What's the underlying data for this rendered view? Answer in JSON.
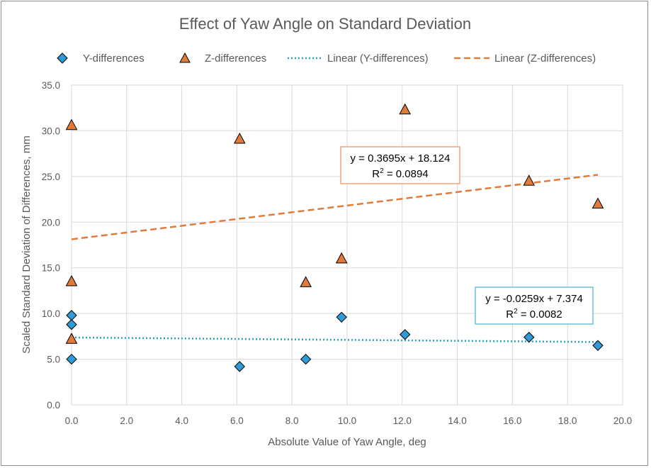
{
  "chart_data": {
    "type": "scatter",
    "title": "Effect of Yaw Angle on Standard Deviation",
    "xlabel": "Absolute Value of Yaw Angle, deg",
    "ylabel": "Scaled Standard Deviation of Differences, mm",
    "xlim": [
      0,
      20
    ],
    "ylim": [
      0,
      35
    ],
    "x_ticks": [
      "0.0",
      "2.0",
      "4.0",
      "6.0",
      "8.0",
      "10.0",
      "12.0",
      "14.0",
      "16.0",
      "18.0",
      "20.0"
    ],
    "y_ticks": [
      "0.0",
      "5.0",
      "10.0",
      "15.0",
      "20.0",
      "25.0",
      "30.0",
      "35.0"
    ],
    "grid": true,
    "legend_position": "top",
    "series": [
      {
        "name": "Y-differences",
        "marker": "diamond",
        "color": "#2E9BD6",
        "points": [
          {
            "x": 0.0,
            "y": 5.0
          },
          {
            "x": 0.0,
            "y": 8.8
          },
          {
            "x": 0.0,
            "y": 9.8
          },
          {
            "x": 6.1,
            "y": 4.2
          },
          {
            "x": 8.5,
            "y": 5.0
          },
          {
            "x": 9.8,
            "y": 9.6
          },
          {
            "x": 12.1,
            "y": 7.7
          },
          {
            "x": 16.6,
            "y": 7.4
          },
          {
            "x": 19.1,
            "y": 6.5
          }
        ]
      },
      {
        "name": "Z-differences",
        "marker": "triangle",
        "color": "#E07B39",
        "points": [
          {
            "x": 0.0,
            "y": 7.2
          },
          {
            "x": 0.0,
            "y": 13.5
          },
          {
            "x": 0.0,
            "y": 30.6
          },
          {
            "x": 6.1,
            "y": 29.1
          },
          {
            "x": 8.5,
            "y": 13.4
          },
          {
            "x": 9.8,
            "y": 16.0
          },
          {
            "x": 12.1,
            "y": 32.3
          },
          {
            "x": 16.6,
            "y": 24.5
          },
          {
            "x": 19.1,
            "y": 22.0
          }
        ]
      }
    ],
    "trendlines": [
      {
        "name": "Linear (Y-differences)",
        "slope": -0.0259,
        "intercept": 7.374,
        "color": "#27A3C4",
        "style": "dotted",
        "x_range": [
          0,
          19.1
        ],
        "equation": "y = -0.0259x + 7.374",
        "r2_label": "R",
        "r2_exp": "2",
        "r2_value": " = 0.0082",
        "box_border": "#27A3C4"
      },
      {
        "name": "Linear (Z-differences)",
        "slope": 0.3695,
        "intercept": 18.124,
        "color": "#E07B39",
        "style": "dashed",
        "x_range": [
          0,
          19.1
        ],
        "equation": "y = 0.3695x + 18.124",
        "r2_label": "R",
        "r2_exp": "2",
        "r2_value": " = 0.0894",
        "box_border": "#E07B39"
      }
    ]
  }
}
